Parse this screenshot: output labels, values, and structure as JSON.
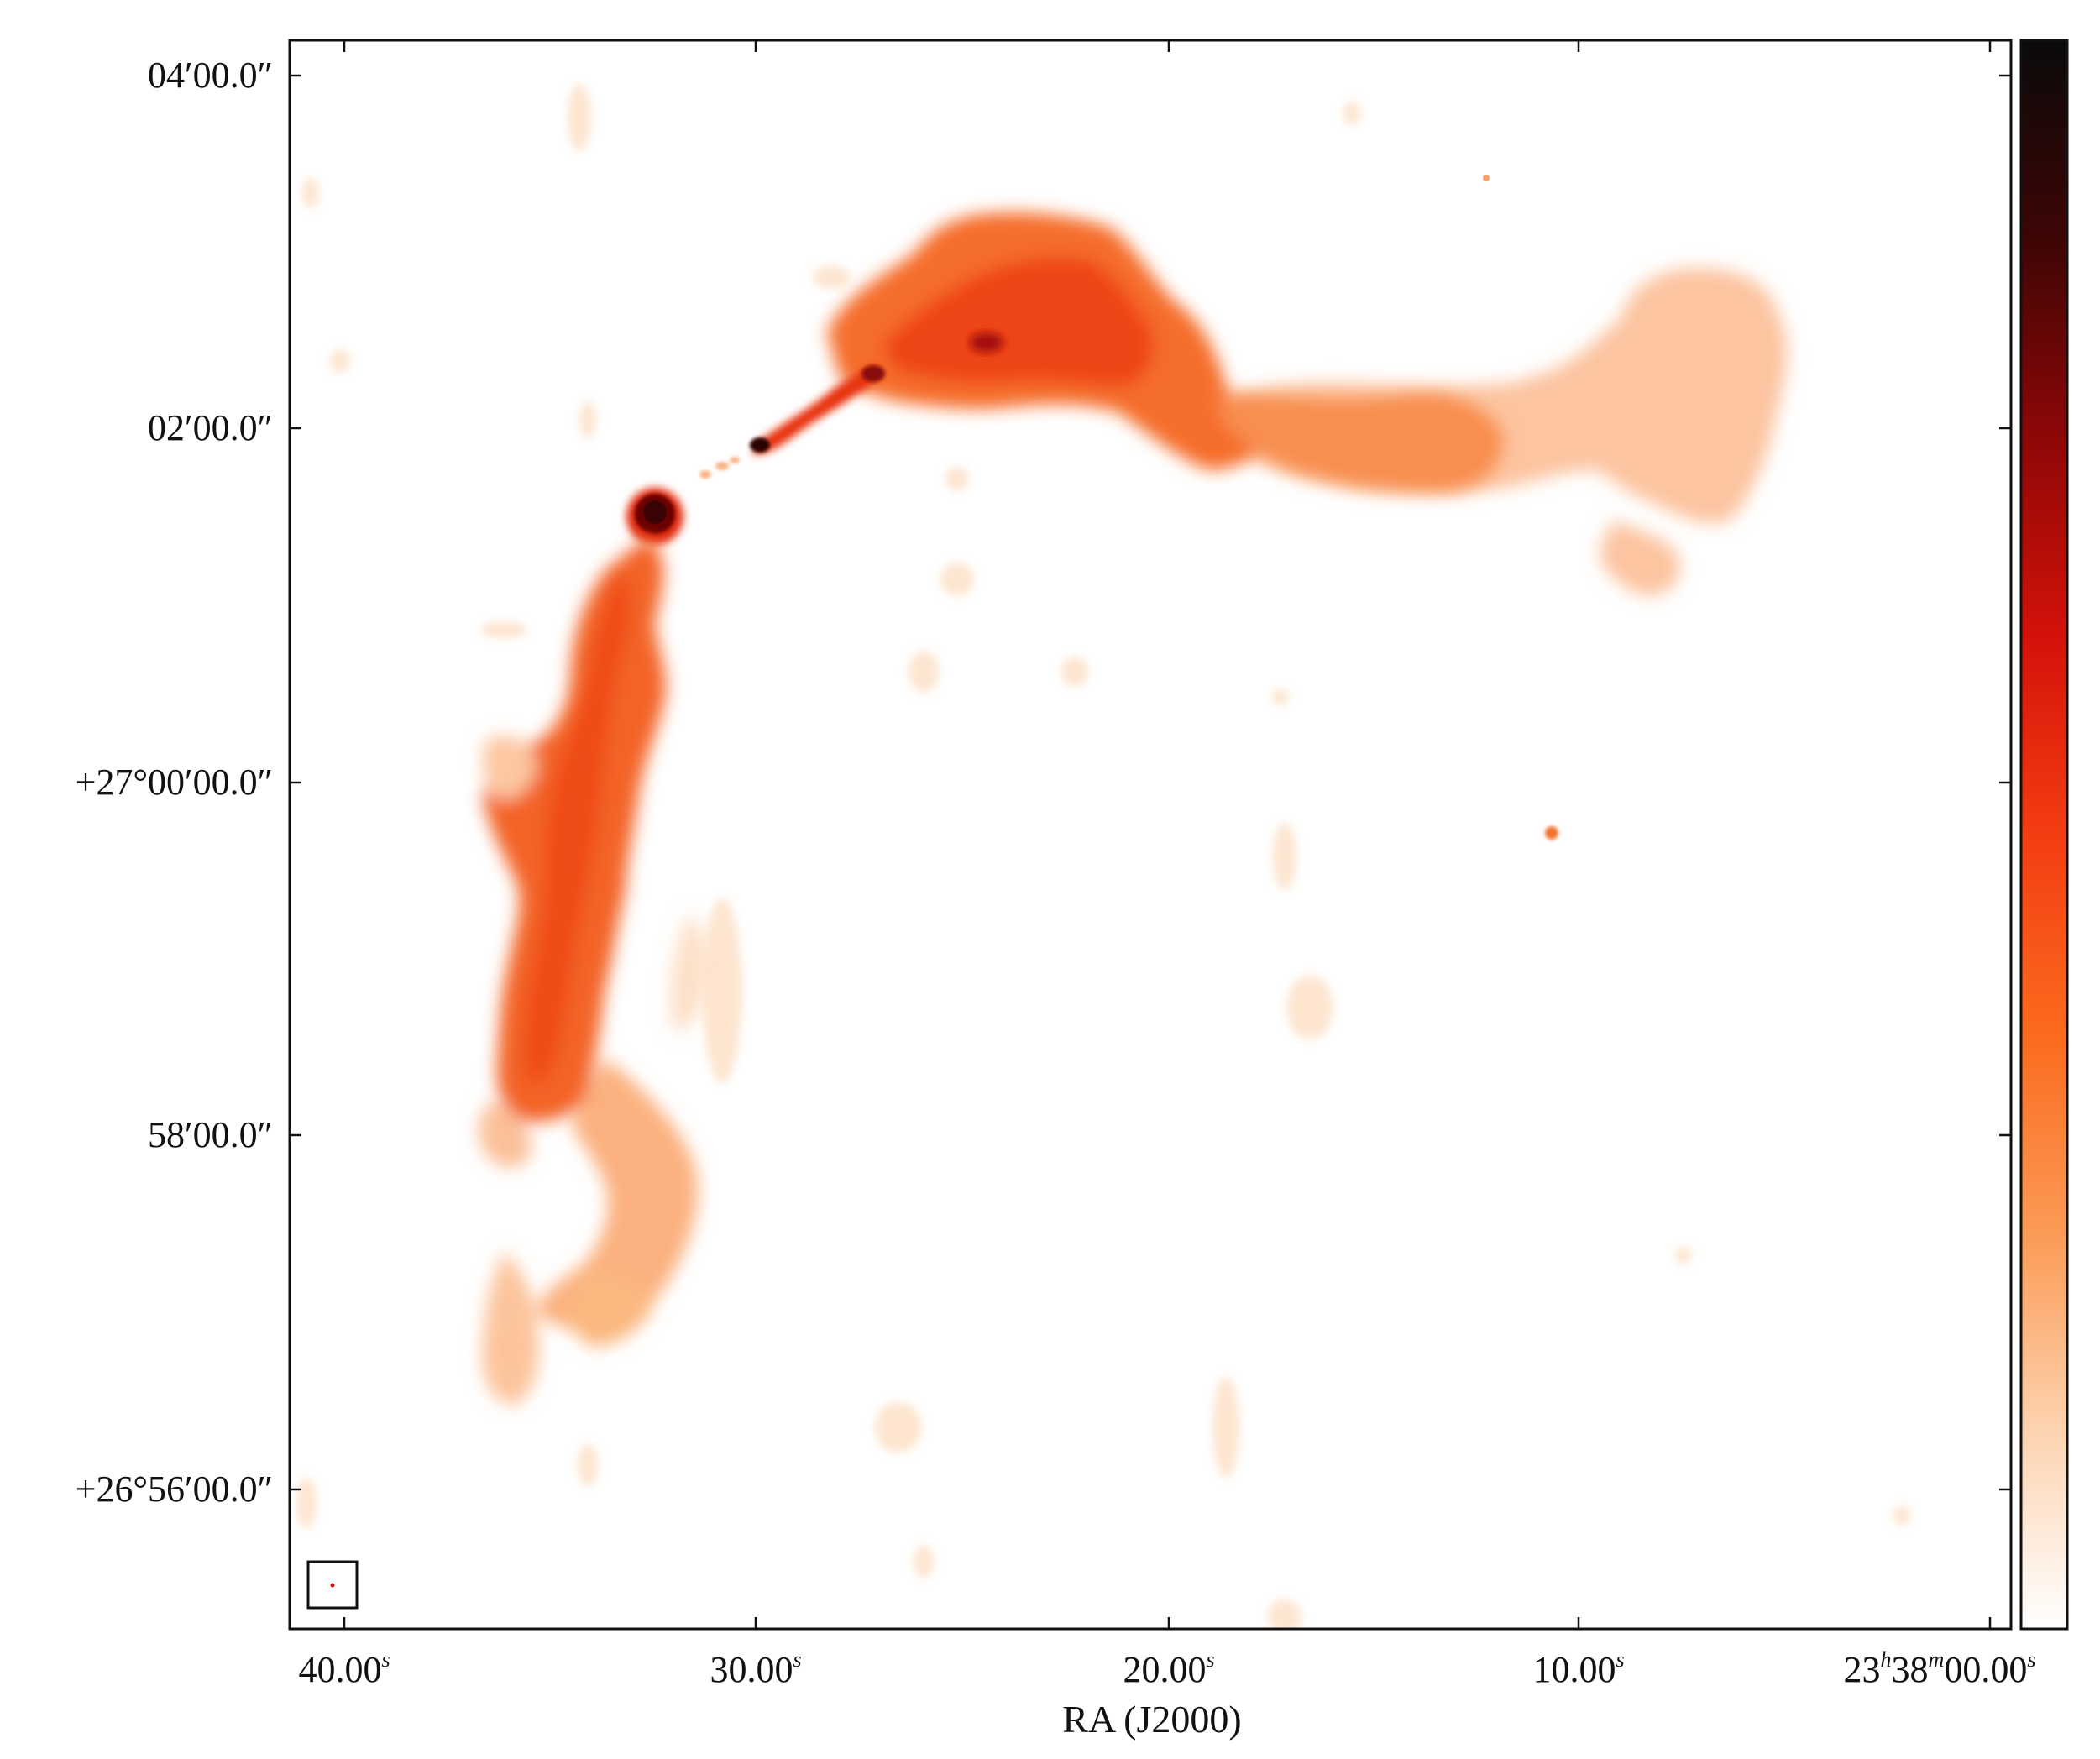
{
  "figure": {
    "x_axis_label": "RA (J2000)",
    "x_ticks": [
      {
        "main": "40.00",
        "sup": "s"
      },
      {
        "main": "30.00",
        "sup": "s"
      },
      {
        "main": "20.00",
        "sup": "s"
      },
      {
        "main": "10.00",
        "sup": "s"
      },
      {
        "main": "23",
        "sup1": "h",
        "mid": "38",
        "sup2": "m",
        "end": "00.00",
        "sup3": "s"
      }
    ],
    "y_ticks": [
      "04′00.0″",
      "02′00.0″",
      "+27°00′00.0″",
      "58′00.0″",
      "+26°56′00.0″"
    ],
    "colormap": [
      "#ffffff",
      "#fdd3b0",
      "#fb9a55",
      "#fb6a1e",
      "#f33d12",
      "#d3120a",
      "#8e0707",
      "#3e0505",
      "#0a0a0a"
    ],
    "emission_color_faint": "#fcc29a",
    "emission_color_mid": "#f57c3c",
    "emission_color_bright": "#ee4a18",
    "core_color": "#4a0505"
  }
}
